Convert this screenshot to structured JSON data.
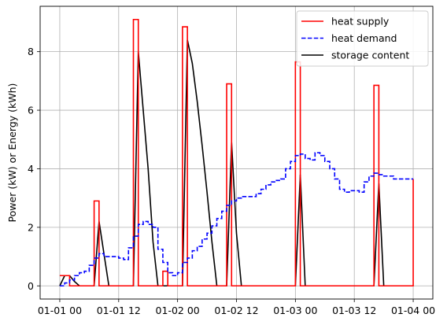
{
  "chart_data": {
    "type": "line",
    "title": "",
    "xlabel": "",
    "ylabel": "Power (kW) or Energy (kWh)",
    "x_axis_unit": "hours",
    "x_axis_origin": "01-01 00",
    "xlim": [
      -4,
      76
    ],
    "ylim": [
      -0.45,
      9.55
    ],
    "x_ticks": [
      {
        "x": 0,
        "label": "01-01 00"
      },
      {
        "x": 12,
        "label": "01-01 12"
      },
      {
        "x": 24,
        "label": "01-02 00"
      },
      {
        "x": 36,
        "label": "01-02 12"
      },
      {
        "x": 48,
        "label": "01-03 00"
      },
      {
        "x": 60,
        "label": "01-03 12"
      },
      {
        "x": 72,
        "label": "01-04 00"
      }
    ],
    "y_ticks": [
      {
        "y": 0,
        "label": "0"
      },
      {
        "y": 2,
        "label": "2"
      },
      {
        "y": 4,
        "label": "4"
      },
      {
        "y": 6,
        "label": "6"
      },
      {
        "y": 8,
        "label": "8"
      }
    ],
    "grid": true,
    "legend_position": "top-right",
    "series": [
      {
        "name": "heat supply",
        "color": "#ff0000",
        "style": "solid",
        "drawstyle": "steps-post",
        "x": [
          0,
          1,
          2,
          3,
          4,
          5,
          6,
          7,
          8,
          9,
          10,
          11,
          12,
          13,
          14,
          15,
          16,
          17,
          18,
          19,
          20,
          21,
          22,
          23,
          24,
          25,
          26,
          27,
          28,
          29,
          30,
          31,
          32,
          33,
          34,
          35,
          36,
          37,
          38,
          39,
          40,
          41,
          42,
          43,
          44,
          45,
          46,
          47,
          48,
          49,
          50,
          51,
          52,
          53,
          54,
          55,
          56,
          57,
          58,
          59,
          60,
          61,
          62,
          63,
          64,
          65,
          66,
          67,
          68,
          69,
          70,
          71,
          72
        ],
        "y": [
          0.35,
          0.35,
          0,
          0,
          0,
          0,
          0,
          2.9,
          0,
          0,
          0,
          0,
          0,
          0,
          0,
          9.1,
          0,
          0,
          0,
          0,
          0,
          0.5,
          0,
          0,
          0,
          8.85,
          0,
          0,
          0,
          0,
          0,
          0,
          0,
          0,
          6.9,
          0,
          0,
          0,
          0,
          0,
          0,
          0,
          0,
          0,
          0,
          0,
          0,
          0,
          7.65,
          0,
          0,
          0,
          0,
          0,
          0,
          0,
          0,
          0,
          0,
          0,
          0,
          0,
          0,
          0,
          6.85,
          0,
          0,
          0,
          0,
          0,
          0,
          0,
          3.65
        ]
      },
      {
        "name": "heat demand",
        "color": "#0000ff",
        "style": "dashed",
        "drawstyle": "steps-post",
        "x": [
          0,
          1,
          2,
          3,
          4,
          5,
          6,
          7,
          8,
          9,
          10,
          11,
          12,
          13,
          14,
          15,
          16,
          17,
          18,
          19,
          20,
          21,
          22,
          23,
          24,
          25,
          26,
          27,
          28,
          29,
          30,
          31,
          32,
          33,
          34,
          35,
          36,
          37,
          38,
          39,
          40,
          41,
          42,
          43,
          44,
          45,
          46,
          47,
          48,
          49,
          50,
          51,
          52,
          53,
          54,
          55,
          56,
          57,
          58,
          59,
          60,
          61,
          62,
          63,
          64,
          65,
          66,
          67,
          68,
          69,
          70,
          71,
          72
        ],
        "y": [
          0.0,
          0.1,
          0.2,
          0.35,
          0.45,
          0.5,
          0.7,
          0.95,
          1.1,
          1.0,
          1.0,
          1.0,
          0.95,
          0.9,
          1.3,
          1.7,
          2.1,
          2.2,
          2.1,
          2.0,
          1.25,
          0.8,
          0.45,
          0.35,
          0.45,
          0.8,
          0.95,
          1.2,
          1.35,
          1.6,
          1.8,
          2.05,
          2.3,
          2.55,
          2.75,
          2.9,
          3.0,
          3.05,
          3.05,
          3.05,
          3.15,
          3.3,
          3.45,
          3.55,
          3.6,
          3.65,
          4.0,
          4.25,
          4.45,
          4.5,
          4.35,
          4.3,
          4.55,
          4.45,
          4.25,
          4.0,
          3.65,
          3.3,
          3.2,
          3.25,
          3.25,
          3.2,
          3.55,
          3.75,
          3.85,
          3.8,
          3.75,
          3.75,
          3.65,
          3.65,
          3.65,
          3.65,
          3.65
        ]
      },
      {
        "name": "storage content",
        "color": "#000000",
        "style": "solid",
        "drawstyle": "default",
        "x": [
          0,
          1,
          2,
          3,
          4,
          5,
          6,
          7,
          8,
          9,
          10,
          11,
          12,
          13,
          14,
          15,
          16,
          17,
          18,
          19,
          20,
          21,
          22,
          23,
          24,
          25,
          26,
          27,
          28,
          29,
          30,
          31,
          32,
          33,
          34,
          35,
          36,
          37,
          38,
          39,
          40,
          41,
          42,
          43,
          44,
          45,
          46,
          47,
          48,
          49,
          50,
          51,
          52,
          53,
          54,
          55,
          56,
          57,
          58,
          59,
          60,
          61,
          62,
          63,
          64,
          65,
          66,
          67,
          68,
          69,
          70,
          71,
          72
        ],
        "y": [
          0,
          0.35,
          0.35,
          0.15,
          0,
          0,
          0,
          0,
          2.2,
          1.1,
          0,
          0,
          0,
          0,
          0,
          0,
          8.0,
          6.0,
          4.0,
          1.5,
          0,
          0,
          0,
          0,
          0,
          0,
          8.4,
          7.6,
          6.3,
          4.8,
          3.2,
          1.5,
          0,
          0,
          0,
          4.9,
          1.8,
          0,
          0,
          0,
          0,
          0,
          0,
          0,
          0,
          0,
          0,
          0,
          0,
          3.8,
          0,
          0,
          0,
          0,
          0,
          0,
          0,
          0,
          0,
          0,
          0,
          0,
          0,
          0,
          0,
          3.5,
          0,
          0,
          0,
          0,
          0,
          0,
          0
        ]
      }
    ]
  }
}
